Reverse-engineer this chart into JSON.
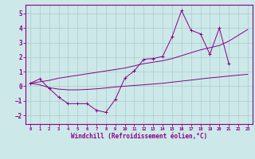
{
  "xlabel": "Windchill (Refroidissement éolien,°C)",
  "background_color": "#cce8e8",
  "grid_color": "#aacccc",
  "line_color": "#880088",
  "xlim": [
    -0.5,
    23.5
  ],
  "ylim": [
    -2.6,
    5.6
  ],
  "xticks": [
    0,
    1,
    2,
    3,
    4,
    5,
    6,
    7,
    8,
    9,
    10,
    11,
    12,
    13,
    14,
    15,
    16,
    17,
    18,
    19,
    20,
    21,
    22,
    23
  ],
  "yticks": [
    -2,
    -1,
    0,
    1,
    2,
    3,
    4,
    5
  ],
  "curve1_x": [
    0,
    1,
    2,
    3,
    4,
    5,
    6,
    7,
    8,
    9,
    10,
    11,
    12,
    13,
    14,
    15,
    16,
    17,
    18,
    19,
    20,
    21
  ],
  "curve1_y": [
    0.2,
    0.5,
    -0.15,
    -0.75,
    -1.2,
    -1.2,
    -1.2,
    -1.65,
    -1.8,
    -0.9,
    0.55,
    1.05,
    1.85,
    1.9,
    2.05,
    3.4,
    5.2,
    3.85,
    3.6,
    2.2,
    4.0,
    1.55
  ],
  "curve2_x": [
    0,
    1,
    2,
    3,
    4,
    5,
    6,
    7,
    8,
    9,
    10,
    11,
    12,
    13,
    14,
    15,
    16,
    17,
    18,
    19,
    20,
    21,
    22,
    23
  ],
  "curve2_y": [
    0.2,
    0.3,
    0.4,
    0.55,
    0.65,
    0.75,
    0.85,
    0.95,
    1.05,
    1.15,
    1.25,
    1.4,
    1.55,
    1.65,
    1.75,
    1.9,
    2.1,
    2.3,
    2.5,
    2.65,
    2.8,
    3.1,
    3.5,
    3.9
  ],
  "curve3_x": [
    0,
    1,
    2,
    3,
    4,
    5,
    6,
    7,
    8,
    9,
    10,
    11,
    12,
    13,
    14,
    15,
    16,
    17,
    18,
    19,
    20,
    21,
    22,
    23
  ],
  "curve3_y": [
    0.2,
    0.1,
    -0.1,
    -0.2,
    -0.25,
    -0.25,
    -0.22,
    -0.18,
    -0.12,
    -0.05,
    0.0,
    0.05,
    0.1,
    0.15,
    0.2,
    0.28,
    0.35,
    0.42,
    0.5,
    0.57,
    0.63,
    0.7,
    0.76,
    0.82
  ]
}
